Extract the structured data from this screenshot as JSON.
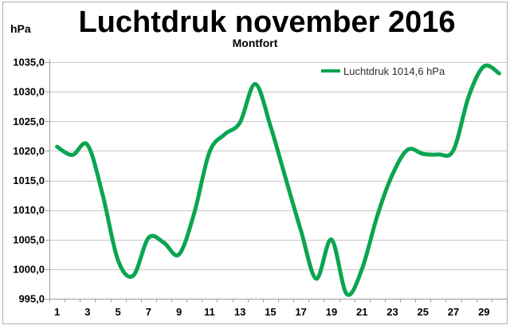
{
  "figure": {
    "title": "Luchtdruk november 2016",
    "subtitle": "Montfort",
    "unit_label": "hPa",
    "legend_label": "Luchtdruk 1014,6 hPa"
  },
  "chart_data": {
    "type": "line",
    "title": "Luchtdruk november 2016",
    "subtitle": "Montfort",
    "xlabel": "",
    "ylabel": "hPa",
    "x": [
      1,
      2,
      3,
      4,
      5,
      6,
      7,
      8,
      9,
      10,
      11,
      12,
      13,
      14,
      15,
      16,
      17,
      18,
      19,
      20,
      21,
      22,
      23,
      24,
      25,
      26,
      27,
      28,
      29,
      30
    ],
    "series": [
      {
        "name": "Luchtdruk 1014,6 hPa",
        "values": [
          1020.7,
          1019.3,
          1021.0,
          1012.5,
          1001.5,
          998.9,
          1005.3,
          1004.5,
          1002.5,
          1009.5,
          1019.8,
          1022.8,
          1024.8,
          1031.3,
          1024.2,
          1015.3,
          1006.5,
          998.4,
          1005.0,
          995.8,
          1000.0,
          1009.0,
          1016.0,
          1020.2,
          1019.5,
          1019.4,
          1020.1,
          1029.2,
          1034.3,
          1033.1
        ]
      }
    ],
    "mean_value_shown_in_legend": "1014,6 hPa",
    "ylim": [
      995,
      1035
    ],
    "y_tick_step": 5,
    "y_ticks": [
      {
        "value": 1035,
        "label": "1035,0"
      },
      {
        "value": 1030,
        "label": "1030,0"
      },
      {
        "value": 1025,
        "label": "1025,0"
      },
      {
        "value": 1020,
        "label": "1020,0"
      },
      {
        "value": 1015,
        "label": "1015,0"
      },
      {
        "value": 1010,
        "label": "1010,0"
      },
      {
        "value": 1005,
        "label": "1005,0"
      },
      {
        "value": 1000,
        "label": "1000,0"
      },
      {
        "value": 995,
        "label": "995,0"
      }
    ],
    "x_ticks": [
      {
        "day": 1,
        "label": "1"
      },
      {
        "day": 3,
        "label": "3"
      },
      {
        "day": 5,
        "label": "5"
      },
      {
        "day": 7,
        "label": "7"
      },
      {
        "day": 9,
        "label": "9"
      },
      {
        "day": 11,
        "label": "11"
      },
      {
        "day": 13,
        "label": "13"
      },
      {
        "day": 15,
        "label": "15"
      },
      {
        "day": 17,
        "label": "17"
      },
      {
        "day": 19,
        "label": "19"
      },
      {
        "day": 21,
        "label": "21"
      },
      {
        "day": 23,
        "label": "23"
      },
      {
        "day": 25,
        "label": "25"
      },
      {
        "day": 27,
        "label": "27"
      },
      {
        "day": 29,
        "label": "29"
      }
    ],
    "grid": true,
    "smooth": true,
    "legend_position": "top-right-inside",
    "colors": {
      "line": "#0aa551",
      "grid": "#c8c8c8",
      "axis": "#9d9d9d",
      "border": "#adadad",
      "legend_text": "#2f2f2f",
      "text": "#000000",
      "background": "#ffffff"
    }
  }
}
